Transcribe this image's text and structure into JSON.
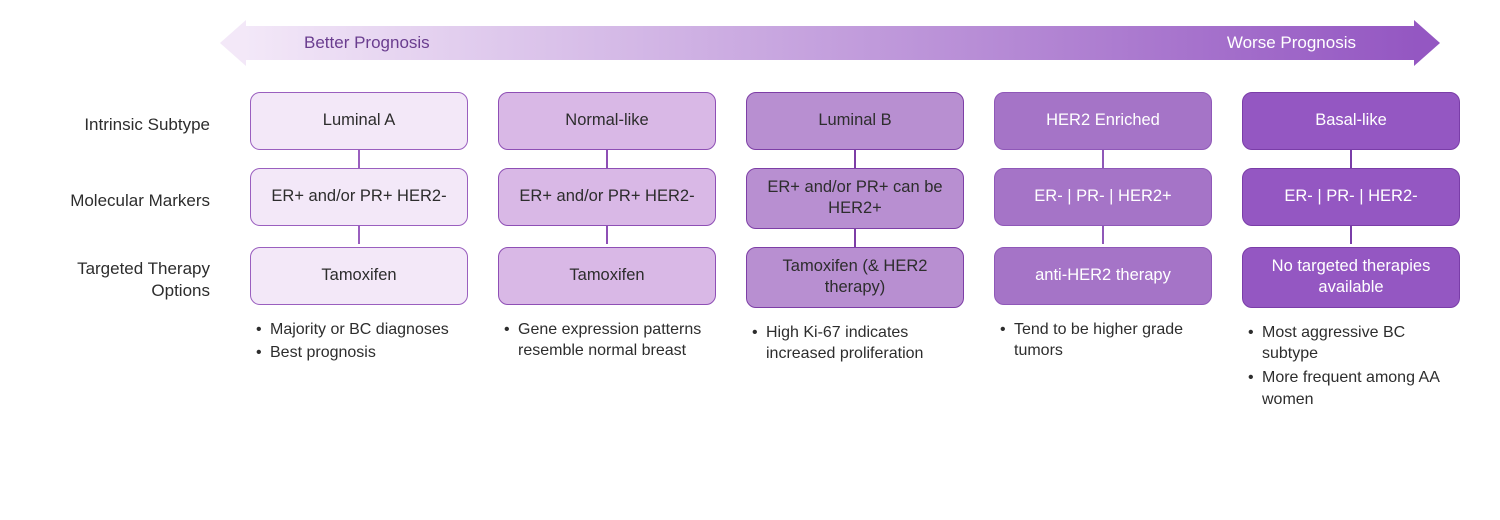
{
  "arrow": {
    "left_label": "Better Prognosis",
    "right_label": "Worse Prognosis",
    "gradient_start": "#f3e8f8",
    "gradient_end": "#9457c2",
    "left_label_color": "#6a3d8f",
    "right_label_color": "#ffffff"
  },
  "row_labels": {
    "subtype": "Intrinsic Subtype",
    "markers": "Molecular Markers",
    "therapy": "Targeted Therapy Options"
  },
  "columns": [
    {
      "subtype": "Luminal A",
      "markers": "ER+ and/or PR+ HER2-",
      "therapy": "Tamoxifen",
      "bullets": [
        "Majority or BC diagnoses",
        "Best prognosis"
      ],
      "fill": "#f3e8f8",
      "border": "#9a5fbf",
      "text": "#2d2d2d",
      "connector": "#9a5fbf"
    },
    {
      "subtype": "Normal-like",
      "markers": "ER+ and/or PR+ HER2-",
      "therapy": "Tamoxifen",
      "bullets": [
        "Gene expression patterns resemble normal breast"
      ],
      "fill": "#d9b8e6",
      "border": "#8e4fb5",
      "text": "#2d2d2d",
      "connector": "#8e4fb5"
    },
    {
      "subtype": "Luminal B",
      "markers": "ER+ and/or PR+ can be HER2+",
      "therapy": "Tamoxifen (& HER2 therapy)",
      "bullets": [
        "High Ki-67 indicates increased proliferation"
      ],
      "fill": "#b88fd1",
      "border": "#7d3ea6",
      "text": "#2d2d2d",
      "connector": "#7d3ea6"
    },
    {
      "subtype": "HER2 Enriched",
      "markers": "ER- | PR- | HER2+",
      "therapy": "anti-HER2 therapy",
      "bullets": [
        "Tend to be higher grade tumors"
      ],
      "fill": "#a574c7",
      "border": "#8f58b8",
      "text": "#ffffff",
      "connector": "#8f58b8"
    },
    {
      "subtype": "Basal-like",
      "markers": "ER- |  PR- | HER2-",
      "therapy": "No targeted therapies available",
      "bullets": [
        "Most aggressive BC subtype",
        "More frequent among AA women"
      ],
      "fill": "#9457c2",
      "border": "#7a3da8",
      "text": "#ffffff",
      "connector": "#7a3da8"
    }
  ]
}
